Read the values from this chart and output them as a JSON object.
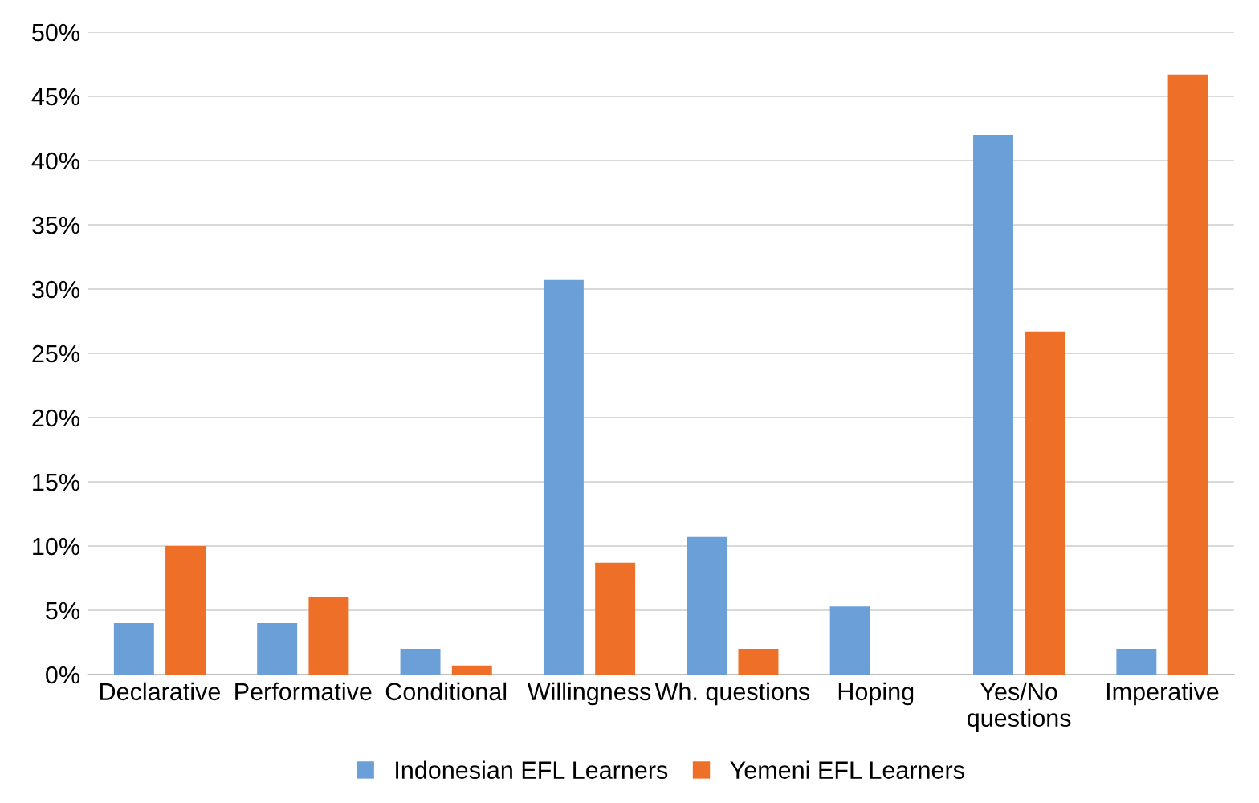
{
  "chart_data": {
    "type": "bar",
    "categories": [
      "Declarative",
      "Performative",
      "Conditional",
      "Willingness",
      "Wh. questions",
      "Hoping",
      "Yes/No\nquestions",
      "Imperative"
    ],
    "series": [
      {
        "name": "Indonesian EFL Learners",
        "color": "#6a9fd8",
        "values": [
          4,
          4,
          2,
          30.7,
          10.7,
          5.3,
          42,
          2
        ]
      },
      {
        "name": "Yemeni EFL Learners",
        "color": "#ee7028",
        "values": [
          10,
          6,
          0.7,
          8.7,
          2,
          0,
          26.7,
          46.7
        ]
      }
    ],
    "ylim": [
      0,
      50
    ],
    "yticks": [
      {
        "value": 0,
        "label": "0%"
      },
      {
        "value": 5,
        "label": "5%"
      },
      {
        "value": 10,
        "label": "10%"
      },
      {
        "value": 15,
        "label": "15%"
      },
      {
        "value": 20,
        "label": "20%"
      },
      {
        "value": 25,
        "label": "25%"
      },
      {
        "value": 30,
        "label": "30%"
      },
      {
        "value": 35,
        "label": "35%"
      },
      {
        "value": 40,
        "label": "40%"
      },
      {
        "value": 45,
        "label": "45%"
      },
      {
        "value": 50,
        "label": "50%"
      }
    ],
    "grid": "y",
    "legend": "bottom"
  }
}
